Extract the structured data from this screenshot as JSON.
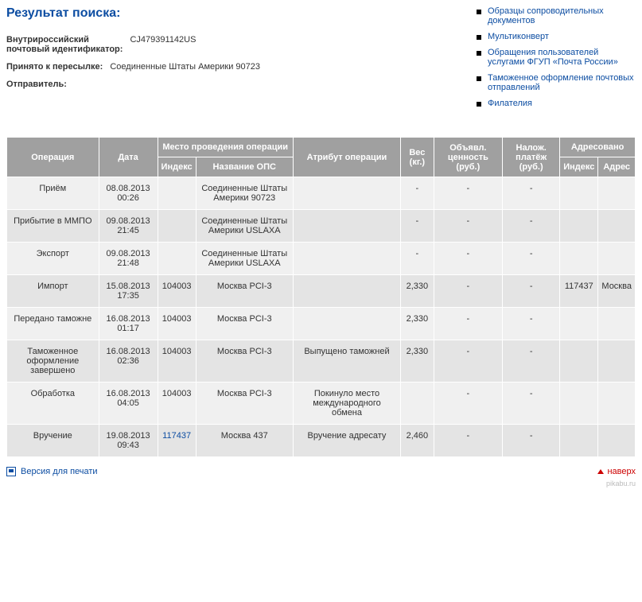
{
  "title": "Результат поиска:",
  "meta": {
    "id_label": "Внутрироссийский\nпочтовый идентификатор:",
    "id_value": "CJ479391142US",
    "accepted_label": "Принято к пересылке:",
    "accepted_value": "Соединенные Штаты Америки 90723",
    "sender_label": "Отправитель:"
  },
  "sidebar": {
    "items": [
      "Образцы сопроводительных документов",
      "Мультиконверт",
      "Обращения пользователей услугами ФГУП «Почта России»",
      "Таможенное оформление почтовых отправлений",
      "Филателия"
    ]
  },
  "table": {
    "headers": {
      "operation": "Операция",
      "date": "Дата",
      "place_group": "Место проведения операции",
      "index": "Индекс",
      "ops": "Название ОПС",
      "attribute": "Атрибут операции",
      "weight": "Вес (кг.)",
      "declared": "Объявл. ценность (руб.)",
      "cod": "Налож. платёж (руб.)",
      "addressed_group": "Адресовано",
      "addr_index": "Индекс",
      "addr": "Адрес"
    },
    "rows": [
      {
        "op": "Приём",
        "date": "08.08.2013 00:26",
        "index": "",
        "ops": "Соединенные Штаты Америки 90723",
        "attr": "",
        "weight": "-",
        "decl": "-",
        "cod": "-",
        "aidx": "",
        "addr": ""
      },
      {
        "op": "Прибытие в ММПО",
        "date": "09.08.2013 21:45",
        "index": "",
        "ops": "Соединенные Штаты Америки USLAXA",
        "attr": "",
        "weight": "-",
        "decl": "-",
        "cod": "-",
        "aidx": "",
        "addr": ""
      },
      {
        "op": "Экспорт",
        "date": "09.08.2013 21:48",
        "index": "",
        "ops": "Соединенные Штаты Америки USLAXA",
        "attr": "",
        "weight": "-",
        "decl": "-",
        "cod": "-",
        "aidx": "",
        "addr": ""
      },
      {
        "op": "Импорт",
        "date": "15.08.2013 17:35",
        "index": "104003",
        "ops": "Москва PCI-3",
        "attr": "",
        "weight": "2,330",
        "decl": "-",
        "cod": "-",
        "aidx": "117437",
        "addr": "Москва"
      },
      {
        "op": "Передано таможне",
        "date": "16.08.2013 01:17",
        "index": "104003",
        "ops": "Москва PCI-3",
        "attr": "",
        "weight": "2,330",
        "decl": "-",
        "cod": "-",
        "aidx": "",
        "addr": ""
      },
      {
        "op": "Таможенное оформление завершено",
        "date": "16.08.2013 02:36",
        "index": "104003",
        "ops": "Москва PCI-3",
        "attr": "Выпущено таможней",
        "weight": "2,330",
        "decl": "-",
        "cod": "-",
        "aidx": "",
        "addr": ""
      },
      {
        "op": "Обработка",
        "date": "16.08.2013 04:05",
        "index": "104003",
        "ops": "Москва PCI-3",
        "attr": "Покинуло место международного обмена",
        "weight": "",
        "decl": "-",
        "cod": "-",
        "aidx": "",
        "addr": ""
      },
      {
        "op": "Вручение",
        "date": "19.08.2013 09:43",
        "index": "117437",
        "index_link": true,
        "ops": "Москва 437",
        "attr": "Вручение адресату",
        "weight": "2,460",
        "decl": "-",
        "cod": "-",
        "aidx": "",
        "addr": ""
      }
    ]
  },
  "footer": {
    "print": "Версия для печати",
    "up": "наверх"
  },
  "watermark": "pikabu.ru"
}
